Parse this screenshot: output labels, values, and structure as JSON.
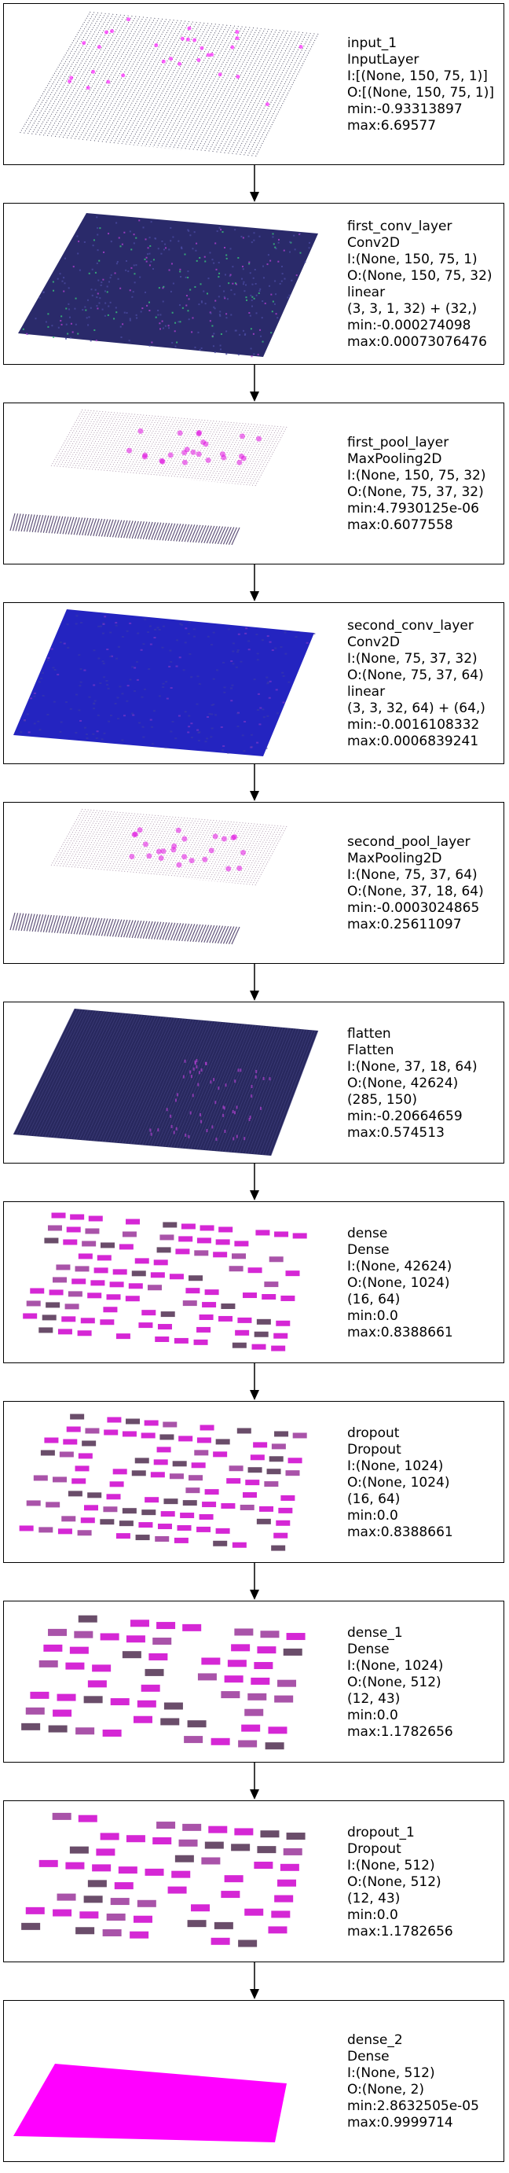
{
  "colors": {
    "background": "#ffffff",
    "border": "#000000",
    "low": "#1e1a4a",
    "high": "#ff00ff",
    "mid": "#2020c8"
  },
  "layers": [
    {
      "name": "input_1",
      "type": "InputLayer",
      "input": "I:[(None, 150, 75, 1)]",
      "output": "O:[(None, 150, 75, 1)]",
      "extra": [],
      "min": "min:-0.93313897",
      "max": "max:6.69577",
      "viz": "input"
    },
    {
      "name": "first_conv_layer",
      "type": "Conv2D",
      "input": "I:(None, 150, 75, 1)",
      "output": "O:(None, 150, 75, 32)",
      "extra": [
        "linear",
        "(3, 3, 1, 32) + (32,)"
      ],
      "min": "min:-0.000274098",
      "max": "max:0.00073076476",
      "viz": "conv1"
    },
    {
      "name": "first_pool_layer",
      "type": "MaxPooling2D",
      "input": "I:(None, 150, 75, 32)",
      "output": "O:(None, 75, 37, 32)",
      "extra": [],
      "min": "min:4.7930125e-06",
      "max": "max:0.6077558",
      "viz": "pool"
    },
    {
      "name": "second_conv_layer",
      "type": "Conv2D",
      "input": "I:(None, 75, 37, 32)",
      "output": "O:(None, 75, 37, 64)",
      "extra": [
        "linear",
        "(3, 3, 32, 64) + (64,)"
      ],
      "min": "min:-0.0016108332",
      "max": "max:0.0006839241",
      "viz": "conv2"
    },
    {
      "name": "second_pool_layer",
      "type": "MaxPooling2D",
      "input": "I:(None, 75, 37, 64)",
      "output": "O:(None, 37, 18, 64)",
      "extra": [],
      "min": "min:-0.0003024865",
      "max": "max:0.25611097",
      "viz": "pool"
    },
    {
      "name": "flatten",
      "type": "Flatten",
      "input": "I:(None, 37, 18, 64)",
      "output": "O:(None, 42624)",
      "extra": [
        "(285, 150)"
      ],
      "min": "min:-0.20664659",
      "max": "max:0.574513",
      "viz": "flatten"
    },
    {
      "name": "dense",
      "type": "Dense",
      "input": "I:(None, 42624)",
      "output": "O:(None, 1024)",
      "extra": [
        "(16, 64)"
      ],
      "min": "min:0.0",
      "max": "max:0.8388661",
      "viz": "dense"
    },
    {
      "name": "dropout",
      "type": "Dropout",
      "input": "I:(None, 1024)",
      "output": "O:(None, 1024)",
      "extra": [
        "(16, 64)"
      ],
      "min": "min:0.0",
      "max": "max:0.8388661",
      "viz": "dense"
    },
    {
      "name": "dense_1",
      "type": "Dense",
      "input": "I:(None, 1024)",
      "output": "O:(None, 512)",
      "extra": [
        "(12, 43)"
      ],
      "min": "min:0.0",
      "max": "max:1.1782656",
      "viz": "dense2"
    },
    {
      "name": "dropout_1",
      "type": "Dropout",
      "input": "I:(None, 512)",
      "output": "O:(None, 512)",
      "extra": [
        "(12, 43)"
      ],
      "min": "min:0.0",
      "max": "max:1.1782656",
      "viz": "dense2"
    },
    {
      "name": "dense_2",
      "type": "Dense",
      "input": "I:(None, 512)",
      "output": "O:(None, 2)",
      "extra": [],
      "min": "min:2.8632505e-05",
      "max": "max:0.9999714",
      "viz": "output"
    }
  ]
}
